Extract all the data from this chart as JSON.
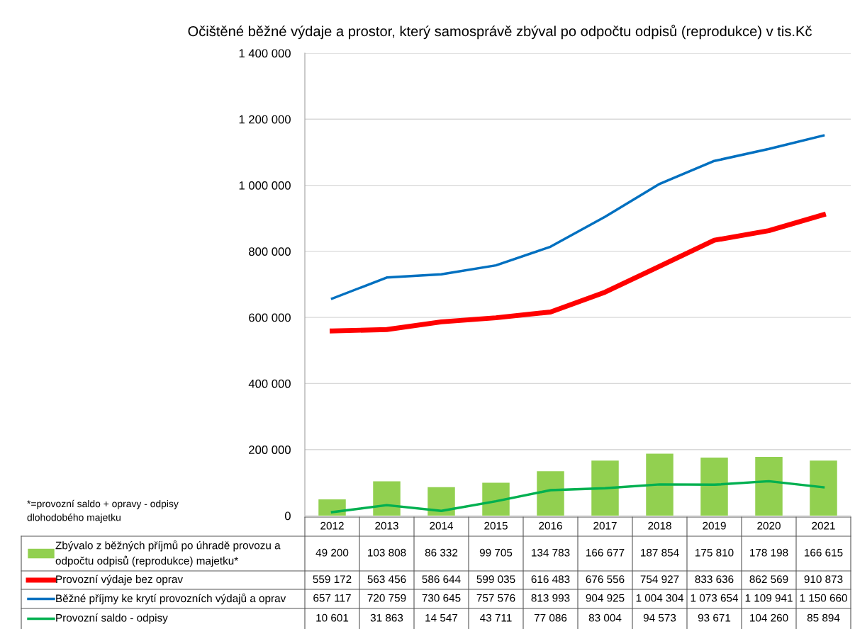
{
  "chart_data": {
    "type": "bar",
    "title": "Očištěné běžné výdaje a prostor, který samosprávě zbýval po odpočtu odpisů (reprodukce) v tis.Kč",
    "categories": [
      "2012",
      "2013",
      "2014",
      "2015",
      "2016",
      "2017",
      "2018",
      "2019",
      "2020",
      "2021"
    ],
    "series": [
      {
        "name": "Zbývalo z běžných příjmů po úhradě provozu a odpočtu odpisů (reprodukce) majetku*",
        "color": "#92d050",
        "values": [
          49200,
          103808,
          86332,
          99705,
          134783,
          166677,
          187854,
          175810,
          178198,
          166615
        ]
      },
      {
        "name": "Provozní výdaje bez oprav",
        "type": "line",
        "color": "#ff0000",
        "values": [
          559172,
          563456,
          586644,
          599035,
          616483,
          676556,
          754927,
          833636,
          862569,
          910873
        ]
      },
      {
        "name": "Běžné příjmy ke krytí provozních výdajů a oprav",
        "type": "line",
        "color": "#0070c0",
        "values": [
          657117,
          720759,
          730645,
          757576,
          813993,
          904925,
          1004304,
          1073654,
          1109941,
          1150660
        ]
      },
      {
        "name": "Provozní saldo - odpisy",
        "type": "line",
        "color": "#00b050",
        "values": [
          10601,
          31863,
          14547,
          43711,
          77086,
          83004,
          94573,
          93671,
          104260,
          85894
        ]
      }
    ],
    "ylim": [
      0,
      1400000
    ],
    "yticks": [
      {
        "value": 0,
        "label": "0"
      },
      {
        "value": 200000,
        "label": "200 000"
      },
      {
        "value": 400000,
        "label": "400 000"
      },
      {
        "value": 600000,
        "label": "600 000"
      },
      {
        "value": 800000,
        "label": "800 000"
      },
      {
        "value": 1000000,
        "label": "1 000 000"
      },
      {
        "value": 1200000,
        "label": "1 200 000"
      },
      {
        "value": 1400000,
        "label": "1 400 000"
      }
    ],
    "grid": "y",
    "legend": "bottom",
    "data_labels": true,
    "annotations": [
      "*=provozní saldo + opravy - odpisy\ndlohodobého majetku"
    ]
  }
}
